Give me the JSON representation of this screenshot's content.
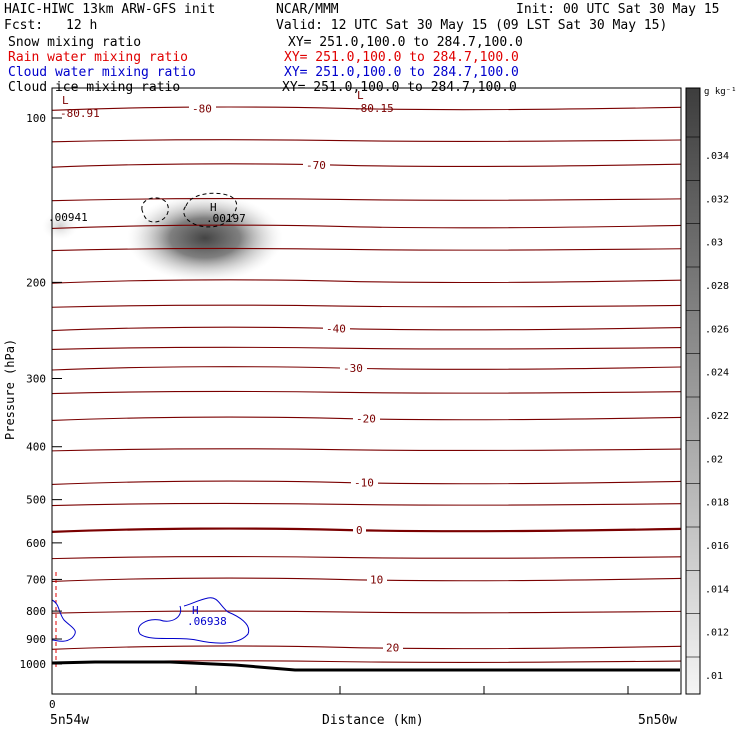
{
  "header": {
    "title": "HAIC-HIWC 13km ARW-GFS init",
    "org": "NCAR/MMM",
    "init": "Init: 00 UTC Sat 30 May 15",
    "fcst_label": "Fcst:",
    "fcst_value": "12 h",
    "valid": "Valid: 12 UTC Sat 30 May 15 (09 LST Sat 30 May 15)",
    "fields": [
      {
        "name": "Snow mixing ratio",
        "xy": "XY= 251.0,100.0 to 284.7,100.0"
      },
      {
        "name": "Rain water mixing ratio",
        "xy": "XY= 251.0,100.0 to 284.7,100.0"
      },
      {
        "name": "Cloud water mixing ratio",
        "xy": "XY= 251.0,100.0 to 284.7,100.0"
      },
      {
        "name": "Cloud ice mixing ratio",
        "xy": "XY= 251.0,100.0 to 284.7,100.0"
      }
    ]
  },
  "colors": {
    "temperature": "#7a0000",
    "rain": "#e00000",
    "cloud_water": "#0000cc",
    "ice": "#000000",
    "terrain": "#000000"
  },
  "chart_data": {
    "type": "heatmap",
    "xlabel": "Distance (km)",
    "ylabel": "Pressure (hPa)",
    "x_tick_labels": [
      "0"
    ],
    "x_end_labels": [
      "5n54w",
      "5n50w"
    ],
    "y_ticks": [
      100,
      200,
      300,
      400,
      500,
      600,
      700,
      800,
      900,
      1000
    ],
    "colorbar": {
      "unit": "g kg⁻¹",
      "ticks": [
        ".034",
        ".032",
        ".03",
        ".028",
        ".026",
        ".024",
        ".022",
        ".02",
        ".018",
        ".016",
        ".014",
        ".012",
        ".01"
      ]
    },
    "isotherm_levels": [
      -80,
      -75,
      -70,
      -65,
      -60,
      -55,
      -50,
      -45,
      -40,
      -35,
      -30,
      -25,
      -20,
      -15,
      -10,
      -5,
      0,
      5,
      10,
      15,
      20,
      25
    ],
    "isotherm_labels": [
      {
        "text": "-80",
        "level": -80
      },
      {
        "text": "-70",
        "level": -70
      },
      {
        "text": "-40",
        "level": -40
      },
      {
        "text": "-30",
        "level": -30
      },
      {
        "text": "-20",
        "level": -20
      },
      {
        "text": "-10",
        "level": -10
      },
      {
        "text": "0",
        "level": 0
      },
      {
        "text": "10",
        "level": 10
      },
      {
        "text": "20",
        "level": 20
      }
    ],
    "annotations": [
      {
        "text": "L",
        "kind": "min"
      },
      {
        "text": "-80.91",
        "kind": "min"
      },
      {
        "text": "L",
        "kind": "min"
      },
      {
        "text": "-80.15",
        "kind": "min"
      },
      {
        "text": "H",
        "kind": "max"
      },
      {
        "text": ".00197",
        "kind": "max"
      },
      {
        "text": ".00941",
        "kind": "value"
      },
      {
        "text": "H",
        "kind": "max"
      },
      {
        "text": ".06938",
        "kind": "max"
      }
    ]
  }
}
